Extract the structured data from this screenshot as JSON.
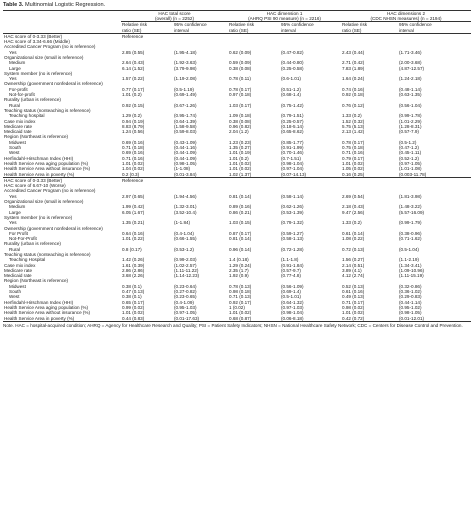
{
  "caption": {
    "label": "Table 3.",
    "title": "Multinomial Logistic Regression."
  },
  "headers": {
    "groups": [
      {
        "title": "HAC total score",
        "sub": "(overall) (n = 2252)"
      },
      {
        "title": "HAC dimension 1",
        "sub": "(AHRQ PSI 90 measure) (n = 2216)"
      },
      {
        "title": "HAC dimensions 2",
        "sub": "(CDC NHSN measures) (n = 2194)"
      }
    ],
    "rr1": "Relative risk",
    "rr2": "ratio (SE)",
    "ci1": "95% confidence",
    "ci2": "interval"
  },
  "sections": [
    {
      "rows": [
        {
          "label": "HAC score of 0-3.33 (Better)",
          "cells": [
            "Reference",
            "",
            "",
            "",
            "",
            ""
          ]
        },
        {
          "label": "HAC score of 3.34-6.66 (Middle)",
          "cells": [
            "",
            "",
            "",
            "",
            "",
            ""
          ]
        },
        {
          "label": "Accredited Cancer Program (no is reference)",
          "cells": [
            "",
            "",
            "",
            "",
            "",
            ""
          ]
        },
        {
          "label": "Yes",
          "indent": true,
          "cells": [
            "2.85 (0.55)",
            "(1.95-4.18)",
            "0.62 (0.09)",
            "(0.47-0.82)",
            "2.43 (0.44)",
            "(1.71-3.46)"
          ]
        },
        {
          "label": "Organizational size (small is reference)",
          "cells": [
            "",
            "",
            "",
            "",
            "",
            ""
          ]
        },
        {
          "label": "Medium",
          "indent": true,
          "cells": [
            "2.64 (0.43)",
            "(1.92-3.63)",
            "0.59 (0.09)",
            "(0.44-0.80)",
            "2.71 (0.42)",
            "(2.00-3.68)"
          ]
        },
        {
          "label": "Large",
          "indent": true,
          "cells": [
            "6.14 (1.52)",
            "(3.79-9.98)",
            "0.38 (0.08)",
            "(0.25-0.58)",
            "7.83 (1.89)",
            "(4.87-12.57)"
          ]
        },
        {
          "label": "System member (no is reference)",
          "cells": [
            "",
            "",
            "",
            "",
            "",
            ""
          ]
        },
        {
          "label": "Yes",
          "indent": true,
          "cells": [
            "1.57 (0.22)",
            "(1.19-2.08)",
            "0.78 (0.11)",
            "(0.6-1.01)",
            "1.64 (0.24)",
            "(1.24-2.18)"
          ]
        },
        {
          "label": "Ownership (government nonfederal is reference)",
          "cells": [
            "",
            "",
            "",
            "",
            "",
            ""
          ]
        },
        {
          "label": "For-profit",
          "indent": true,
          "cells": [
            "0.77 (0.17)",
            "(0.5-1.19)",
            "0.78 (0.17)",
            "(0.51-1.2)",
            "0.74 (0.16)",
            "(0.48-1.14)"
          ]
        },
        {
          "label": "Not-for-profit",
          "indent": true,
          "cells": [
            "1.01 (0.2)",
            "(0.69-1.49)",
            "0.97 (0.18)",
            "(0.68-1.4)",
            "0.92 (0.18)",
            "(0.63-1.35)"
          ]
        },
        {
          "label": "Rurality (urban is reference)",
          "cells": [
            "",
            "",
            "",
            "",
            "",
            ""
          ]
        },
        {
          "label": "Rural",
          "indent": true,
          "cells": [
            "0.92 (0.15)",
            "(0.67-1.26)",
            "1.03 (0.17)",
            "(0.75-1.42)",
            "0.76 (0.12)",
            "(0.56-1.04)"
          ]
        },
        {
          "label": "Teaching status (nonteaching is reference)",
          "cells": [
            "",
            "",
            "",
            "",
            "",
            ""
          ]
        },
        {
          "label": "Teaching hospital",
          "indent": true,
          "cells": [
            "1.29 (0.2)",
            "(0.95-1.74)",
            "1.09 (0.18)",
            "(0.79-1.51)",
            "1.33 (0.2)",
            "(0.99-1.78)"
          ]
        },
        {
          "label": "Case mix index",
          "cells": [
            "0.94 (0.19)",
            "(0.64-1.39)",
            "0.38 (0.08)",
            "(0.25-0.57)",
            "1.52 (0.32)",
            "(1.01-2.29)"
          ]
        },
        {
          "label": "Medicare rate",
          "cells": [
            "8.83 (8.79)",
            "(1.58-9.58)",
            "0.96 (0.82)",
            "(0.18-5.14)",
            "5.75 (5.13)",
            "(1.28-8.31)"
          ]
        },
        {
          "label": "Medicaid rate",
          "cells": [
            "1.24 (0.56)",
            "(0.59-8.03)",
            "2.04 (1.2)",
            "(0.65-8.62)",
            "2.13 (1.42)",
            "(0.57-7.9)"
          ]
        },
        {
          "label": "Region (Northeast is reference)",
          "cells": [
            "",
            "",
            "",
            "",
            "",
            ""
          ]
        },
        {
          "label": "Midwest",
          "indent": true,
          "cells": [
            "0.69 (0.16)",
            "(0.43-1.09)",
            "1.23 (0.23)",
            "(0.85-1.77)",
            "0.78 (0.17)",
            "(0.5-1.2)"
          ]
        },
        {
          "label": "South",
          "indent": true,
          "cells": [
            "0.71 (0.18)",
            "(0.44-1.16)",
            "1.35 (0.27)",
            "(0.91-1.99)",
            "0.75 (0.18)",
            "(0.47-1.2)"
          ]
        },
        {
          "label": "West",
          "indent": true,
          "cells": [
            "0.69 (0.16)",
            "(0.44-1.09)",
            "1.01 (0.19)",
            "(0.70-1.46)",
            "0.71 (0.16)",
            "(0.45-1.11)"
          ]
        },
        {
          "label": "Herfindahl-Hirschman Index (HHI)",
          "cells": [
            "0.71 (0.16)",
            "(0.44-1.09)",
            "1.01 (0.2)",
            "(0.7-1.51)",
            "0.79 (0.17)",
            "(0.52-1.2)"
          ]
        },
        {
          "label": "Health Service Area aging population (%)",
          "cells": [
            "1.01 (0.02)",
            "(0.98-1.05)",
            "1.01 (0.02)",
            "(0.98-1.04)",
            "1.01 (0.02)",
            "(0.97-1.05)"
          ]
        },
        {
          "label": "Health Service Area without insurance (%)",
          "cells": [
            "1.04 (0.02)",
            "(1-1.08)",
            "1.01 (0.02)",
            "(0.97-1.04)",
            "1.05 (0.02)",
            "(1.01-1.08)"
          ]
        },
        {
          "label": "Health Service Area in poverty (%)",
          "cells": [
            "0.2 (0.3)",
            "(0.01-3.84)",
            "1.02 (1.37)",
            "(0.07-14.13)",
            "0.16 (0.25)",
            "(0.003-11.78)"
          ]
        }
      ]
    },
    {
      "rows": [
        {
          "label": "HAC score of 0-3.33 (Better)",
          "cells": [
            "Reference",
            "",
            "",
            "",
            "",
            ""
          ]
        },
        {
          "label": "HAC score of 6.67-10 (Worse)",
          "cells": [
            "",
            "",
            "",
            "",
            "",
            ""
          ]
        },
        {
          "label": "Accredited Cancer Program (no is reference)",
          "cells": [
            "",
            "",
            "",
            "",
            "",
            ""
          ]
        },
        {
          "label": "Yes",
          "indent": true,
          "cells": [
            "2.97 (0.65)",
            "(1.94-4.56)",
            "0.81 (0.14)",
            "(0.58-1.14)",
            "2.69 (0.54)",
            "(1.81-3.98)"
          ]
        },
        {
          "label": "Organizational size (small is reference)",
          "cells": [
            "",
            "",
            "",
            "",
            "",
            ""
          ]
        },
        {
          "label": "Medium",
          "indent": true,
          "cells": [
            "1.99 (0.42)",
            "(1.32-3.01)",
            "0.89 (0.16)",
            "(0.62-1.26)",
            "2.18 (0.43)",
            "(1.48-3.22)"
          ]
        },
        {
          "label": "Large",
          "indent": true,
          "cells": [
            "6.05 (1.67)",
            "(3.52-10.4)",
            "0.86 (0.21)",
            "(0.53-1.39)",
            "9.47 (2.56)",
            "(5.57-16.09)"
          ]
        },
        {
          "label": "System member (no is reference)",
          "cells": [
            "",
            "",
            "",
            "",
            "",
            ""
          ]
        },
        {
          "label": "Yes",
          "indent": true,
          "cells": [
            "1.35 (0.21)",
            "(1-1.84)",
            "1.03 (0.15)",
            "(0.79-1.32)",
            "1.33 (0.2)",
            "(0.99-1.79)"
          ]
        },
        {
          "label": "Ownership (government nonfederal is reference)",
          "cells": [
            "",
            "",
            "",
            "",
            "",
            ""
          ]
        },
        {
          "label": "For Profit",
          "indent": true,
          "cells": [
            "0.64 (0.16)",
            "(0.4-1.04)",
            "0.87 (0.17)",
            "(0.59-1.27)",
            "0.61 (0.14)",
            "(0.38-0.96)"
          ]
        },
        {
          "label": "Not-For-Profit",
          "indent": true,
          "cells": [
            "1.01 (0.22)",
            "(0.66-1.55)",
            "0.81 (0.14)",
            "(0.58-1.13)",
            "1.08 (0.22)",
            "(0.71-1.62)"
          ]
        },
        {
          "label": "Rurality (urban is reference)",
          "cells": [
            "",
            "",
            "",
            "",
            "",
            ""
          ]
        },
        {
          "label": "Rural",
          "indent": true,
          "cells": [
            "0.8 (0.17)",
            "(0.53-1.2)",
            "0.96 (0.14)",
            "(0.72-1.28)",
            "0.72 (0.13)",
            "(0.5-1.04)"
          ]
        },
        {
          "label": "Teaching status (nonteaching is reference)",
          "cells": [
            "",
            "",
            "",
            "",
            "",
            ""
          ]
        },
        {
          "label": "Teaching Hospital",
          "indent": true,
          "cells": [
            "1.42 (0.26)",
            "(0.99-2.03)",
            "1.4 (0.18)",
            "(1.1-1.8)",
            "1.56 (0.27)",
            "(1.1-2.19)"
          ]
        },
        {
          "label": "Case mix index",
          "cells": [
            "1.61 (0.39)",
            "(1.02-2.57)",
            "1.29 (0.24)",
            "(0.91-1.84)",
            "2.14 (0.51)",
            "(1.34-3.41)"
          ]
        },
        {
          "label": "Medicare rate",
          "cells": [
            "2.86 (2.86)",
            "(1.11-11.22)",
            "2.35 (1.7)",
            "(0.57-9.7)",
            "3.89 (4.1)",
            "(1.09-10.96)"
          ]
        },
        {
          "label": "Medicaid rate",
          "cells": [
            "3.68 (2.26)",
            "(1.14-12.23)",
            "1.92 (0.9)",
            "(0.77-4.8)",
            "4.12 (2.74)",
            "(1.11-15.19)"
          ]
        },
        {
          "label": "Region (Northeast is reference)",
          "cells": [
            "",
            "",
            "",
            "",
            "",
            ""
          ]
        },
        {
          "label": "Midwest",
          "indent": true,
          "cells": [
            "0.38 (0.1)",
            "(0.23-0.64)",
            "0.78 (0.13)",
            "(0.56-1.09)",
            "0.52 (0.13)",
            "(0.32-0.86)"
          ]
        },
        {
          "label": "South",
          "indent": true,
          "cells": [
            "0.47 (0.13)",
            "(0.27-0.82)",
            "0.98 (0.18)",
            "(0.69-1.4)",
            "0.61 (0.16)",
            "(0.36-1.02)"
          ]
        },
        {
          "label": "West",
          "indent": true,
          "cells": [
            "0.38 (0.1)",
            "(0.23-0.65)",
            "0.71 (0.13)",
            "(0.5-1.01)",
            "0.49 (0.13)",
            "(0.29-0.83)"
          ]
        },
        {
          "label": "Herfindahl-Hirschman Index (HHI)",
          "cells": [
            "0.65 (0.17)",
            "(0.4-1.09)",
            "0.92 (0.17)",
            "(0.64-1.32)",
            "0.71 (0.17)",
            "(0.44-1.14)"
          ]
        },
        {
          "label": "Health Service Area aging population (%)",
          "cells": [
            "0.99 (0.02)",
            "(0.95-1.03)",
            "1 (0.02)",
            "(0.97-1.03)",
            "0.98 (0.02)",
            "(0.95-1.02)"
          ]
        },
        {
          "label": "Health Service Area without insurance (%)",
          "cells": [
            "1.01 (0.02)",
            "(0.97-1.05)",
            "1.01 (0.02)",
            "(0.98-1.04)",
            "1.01 (0.02)",
            "(0.98-1.05)"
          ]
        },
        {
          "label": "Health Service Area in poverty (%)",
          "cells": [
            "0.44 (0.83)",
            "(0.01-17.63)",
            "0.68 (0.87)",
            "(0.06-8.18)",
            "0.42 (0.72)",
            "(0.01-12.01)"
          ]
        }
      ]
    }
  ],
  "note": "Note. HAC = hospital-acquired condition; AHRQ = Agency for Healthcare Research and Quality; PSI = Patient Safety Indicators; NHSN = National Healthcare Safety Network; CDC = Centers for Disease Control and Prevention."
}
